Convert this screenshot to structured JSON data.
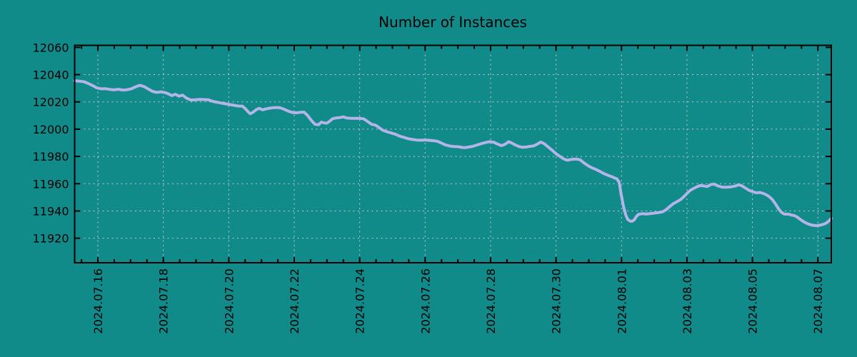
{
  "chart_data": {
    "type": "line",
    "title": "Number of Instances",
    "xlabel": "",
    "ylabel": "",
    "grid": true,
    "legend": null,
    "x_tick_labels": [
      "2024.07.16",
      "2024.07.18",
      "2024.07.20",
      "2024.07.22",
      "2024.07.24",
      "2024.07.26",
      "2024.07.28",
      "2024.07.30",
      "2024.08.01",
      "2024.08.03",
      "2024.08.05",
      "2024.08.07"
    ],
    "x_major_interval_days": 2,
    "x_minor_interval_days": 0.5,
    "xlim_days": [
      -0.71,
      22.41
    ],
    "y_ticks": [
      11920,
      11940,
      11960,
      11980,
      12000,
      12020,
      12040,
      12060
    ],
    "ylim": [
      11902,
      12061.5
    ],
    "colors": {
      "background": "#118a8a",
      "line": "#b4b4e8",
      "grid": "#c8c8c8",
      "axis": "#000000",
      "text": "#000000"
    },
    "series": [
      {
        "name": "instances",
        "points": [
          [
            -0.71,
            12035.5
          ],
          [
            -0.55,
            12035.2
          ],
          [
            -0.42,
            12034.8
          ],
          [
            -0.29,
            12033.5
          ],
          [
            -0.16,
            12032.0
          ],
          [
            -0.03,
            12030.3
          ],
          [
            0.1,
            12029.6
          ],
          [
            0.23,
            12029.7
          ],
          [
            0.36,
            12029.2
          ],
          [
            0.49,
            12028.8
          ],
          [
            0.62,
            12029.3
          ],
          [
            0.76,
            12028.7
          ],
          [
            0.89,
            12028.9
          ],
          [
            1.02,
            12029.6
          ],
          [
            1.15,
            12031.0
          ],
          [
            1.28,
            12032.2
          ],
          [
            1.41,
            12031.3
          ],
          [
            1.54,
            12029.5
          ],
          [
            1.67,
            12027.7
          ],
          [
            1.8,
            12027.0
          ],
          [
            1.93,
            12027.4
          ],
          [
            2.07,
            12026.7
          ],
          [
            2.15,
            12026.0
          ],
          [
            2.26,
            12024.6
          ],
          [
            2.37,
            12025.6
          ],
          [
            2.48,
            12024.2
          ],
          [
            2.59,
            12025.0
          ],
          [
            2.72,
            12022.6
          ],
          [
            2.85,
            12021.4
          ],
          [
            2.98,
            12021.6
          ],
          [
            3.11,
            12021.8
          ],
          [
            3.24,
            12021.7
          ],
          [
            3.38,
            12021.6
          ],
          [
            3.51,
            12020.4
          ],
          [
            3.64,
            12019.8
          ],
          [
            3.77,
            12019.2
          ],
          [
            3.9,
            12018.6
          ],
          [
            4.03,
            12018.1
          ],
          [
            4.16,
            12017.5
          ],
          [
            4.29,
            12017.0
          ],
          [
            4.42,
            12016.8
          ],
          [
            4.51,
            12015.0
          ],
          [
            4.6,
            12012.5
          ],
          [
            4.66,
            12011.3
          ],
          [
            4.75,
            12012.6
          ],
          [
            4.84,
            12014.3
          ],
          [
            4.93,
            12015.3
          ],
          [
            5.03,
            12014.2
          ],
          [
            5.14,
            12014.9
          ],
          [
            5.25,
            12015.4
          ],
          [
            5.38,
            12015.8
          ],
          [
            5.52,
            12015.9
          ],
          [
            5.62,
            12015.3
          ],
          [
            5.73,
            12014.2
          ],
          [
            5.84,
            12013.0
          ],
          [
            5.95,
            12012.2
          ],
          [
            6.06,
            12012.0
          ],
          [
            6.17,
            12012.3
          ],
          [
            6.3,
            12012.5
          ],
          [
            6.41,
            12010.0
          ],
          [
            6.52,
            12006.5
          ],
          [
            6.63,
            12003.6
          ],
          [
            6.74,
            12003.2
          ],
          [
            6.83,
            12005.2
          ],
          [
            6.91,
            12004.6
          ],
          [
            7.0,
            12004.4
          ],
          [
            7.09,
            12006.0
          ],
          [
            7.17,
            12007.6
          ],
          [
            7.28,
            12008.3
          ],
          [
            7.39,
            12008.5
          ],
          [
            7.5,
            12009.0
          ],
          [
            7.61,
            12008.2
          ],
          [
            7.74,
            12007.9
          ],
          [
            7.87,
            12007.9
          ],
          [
            8.0,
            12008.0
          ],
          [
            8.13,
            12007.5
          ],
          [
            8.27,
            12005.2
          ],
          [
            8.37,
            12003.5
          ],
          [
            8.48,
            12003.0
          ],
          [
            8.59,
            12001.2
          ],
          [
            8.7,
            11999.3
          ],
          [
            8.83,
            11998.1
          ],
          [
            8.97,
            11997.2
          ],
          [
            9.1,
            11996.2
          ],
          [
            9.23,
            11994.8
          ],
          [
            9.36,
            11993.9
          ],
          [
            9.49,
            11993.0
          ],
          [
            9.62,
            11992.4
          ],
          [
            9.75,
            11992.0
          ],
          [
            9.88,
            11991.9
          ],
          [
            10.01,
            11992.1
          ],
          [
            10.14,
            11991.8
          ],
          [
            10.28,
            11991.4
          ],
          [
            10.38,
            11991.1
          ],
          [
            10.49,
            11989.9
          ],
          [
            10.62,
            11988.5
          ],
          [
            10.76,
            11987.6
          ],
          [
            10.89,
            11987.2
          ],
          [
            11.02,
            11987.1
          ],
          [
            11.13,
            11986.6
          ],
          [
            11.23,
            11986.5
          ],
          [
            11.34,
            11986.9
          ],
          [
            11.45,
            11987.4
          ],
          [
            11.58,
            11988.4
          ],
          [
            11.72,
            11989.4
          ],
          [
            11.85,
            11990.2
          ],
          [
            11.98,
            11990.9
          ],
          [
            12.11,
            11990.3
          ],
          [
            12.22,
            11989.0
          ],
          [
            12.33,
            11987.9
          ],
          [
            12.44,
            11988.9
          ],
          [
            12.55,
            11990.8
          ],
          [
            12.65,
            11989.8
          ],
          [
            12.76,
            11988.4
          ],
          [
            12.87,
            11987.2
          ],
          [
            12.98,
            11986.7
          ],
          [
            13.09,
            11986.9
          ],
          [
            13.2,
            11987.4
          ],
          [
            13.31,
            11987.7
          ],
          [
            13.42,
            11988.9
          ],
          [
            13.53,
            11990.6
          ],
          [
            13.64,
            11989.3
          ],
          [
            13.72,
            11987.7
          ],
          [
            13.81,
            11985.9
          ],
          [
            13.9,
            11984.2
          ],
          [
            14.01,
            11981.7
          ],
          [
            14.12,
            11980.0
          ],
          [
            14.23,
            11978.2
          ],
          [
            14.34,
            11977.2
          ],
          [
            14.47,
            11977.8
          ],
          [
            14.6,
            11978.1
          ],
          [
            14.73,
            11977.6
          ],
          [
            14.84,
            11975.5
          ],
          [
            14.97,
            11973.3
          ],
          [
            15.08,
            11971.8
          ],
          [
            15.21,
            11970.5
          ],
          [
            15.34,
            11969.0
          ],
          [
            15.47,
            11967.3
          ],
          [
            15.58,
            11966.2
          ],
          [
            15.69,
            11965.3
          ],
          [
            15.78,
            11964.3
          ],
          [
            15.86,
            11963.6
          ],
          [
            15.93,
            11961.0
          ],
          [
            15.99,
            11952.0
          ],
          [
            16.06,
            11943.5
          ],
          [
            16.13,
            11937.0
          ],
          [
            16.19,
            11933.8
          ],
          [
            16.26,
            11932.6
          ],
          [
            16.32,
            11932.4
          ],
          [
            16.39,
            11933.5
          ],
          [
            16.45,
            11935.8
          ],
          [
            16.52,
            11937.5
          ],
          [
            16.63,
            11938.0
          ],
          [
            16.76,
            11937.8
          ],
          [
            16.89,
            11938.1
          ],
          [
            17.02,
            11938.5
          ],
          [
            17.15,
            11938.9
          ],
          [
            17.26,
            11939.4
          ],
          [
            17.37,
            11941.0
          ],
          [
            17.48,
            11943.4
          ],
          [
            17.59,
            11945.4
          ],
          [
            17.7,
            11946.9
          ],
          [
            17.81,
            11948.4
          ],
          [
            17.92,
            11950.8
          ],
          [
            18.03,
            11953.6
          ],
          [
            18.11,
            11955.2
          ],
          [
            18.2,
            11956.5
          ],
          [
            18.29,
            11957.6
          ],
          [
            18.4,
            11958.6
          ],
          [
            18.51,
            11958.4
          ],
          [
            18.62,
            11957.9
          ],
          [
            18.72,
            11959.3
          ],
          [
            18.83,
            11959.8
          ],
          [
            18.94,
            11958.4
          ],
          [
            19.07,
            11957.5
          ],
          [
            19.2,
            11957.4
          ],
          [
            19.34,
            11957.7
          ],
          [
            19.47,
            11958.2
          ],
          [
            19.58,
            11959.3
          ],
          [
            19.68,
            11958.4
          ],
          [
            19.79,
            11956.8
          ],
          [
            19.9,
            11955.1
          ],
          [
            20.01,
            11954.1
          ],
          [
            20.12,
            11953.3
          ],
          [
            20.23,
            11953.6
          ],
          [
            20.34,
            11952.8
          ],
          [
            20.45,
            11951.5
          ],
          [
            20.54,
            11950.0
          ],
          [
            20.62,
            11948.0
          ],
          [
            20.71,
            11945.0
          ],
          [
            20.8,
            11941.5
          ],
          [
            20.89,
            11939.0
          ],
          [
            20.97,
            11937.8
          ],
          [
            21.11,
            11937.6
          ],
          [
            21.19,
            11937.0
          ],
          [
            21.28,
            11936.6
          ],
          [
            21.37,
            11935.5
          ],
          [
            21.45,
            11934.0
          ],
          [
            21.56,
            11932.2
          ],
          [
            21.67,
            11930.8
          ],
          [
            21.78,
            11929.8
          ],
          [
            21.89,
            11929.3
          ],
          [
            22.0,
            11929.3
          ],
          [
            22.11,
            11929.8
          ],
          [
            22.2,
            11930.5
          ],
          [
            22.28,
            11931.5
          ],
          [
            22.35,
            11933.0
          ],
          [
            22.41,
            11934.5
          ]
        ]
      }
    ]
  }
}
